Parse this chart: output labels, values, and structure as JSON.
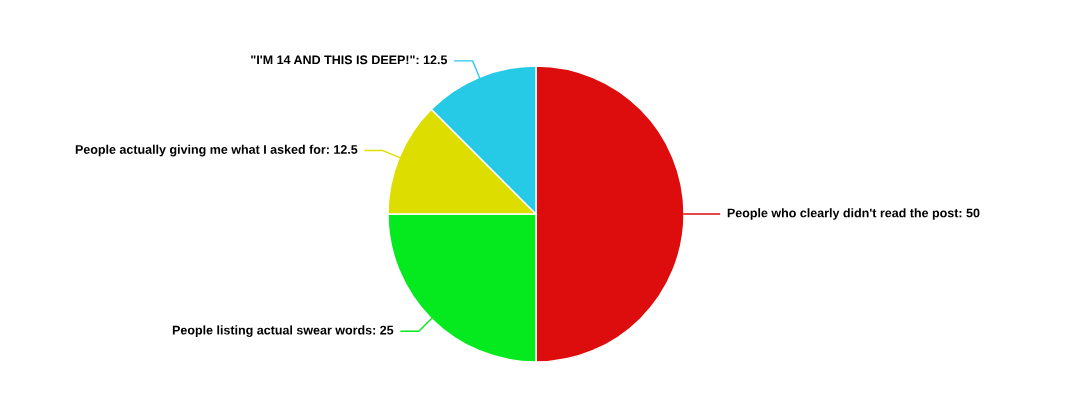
{
  "chart_data": {
    "type": "pie",
    "categories": [
      "People who clearly didn't read the post",
      "People listing actual swear words",
      "People actually giving me what I asked for",
      "\"I'M 14 AND THIS IS DEEP!\""
    ],
    "values": [
      50,
      25,
      12.5,
      12.5
    ],
    "value_labels": [
      "50",
      "25",
      "12.5",
      "12.5"
    ],
    "colors": [
      "#dd0d0d",
      "#05ea1e",
      "#dddd00",
      "#26c9e6"
    ]
  }
}
